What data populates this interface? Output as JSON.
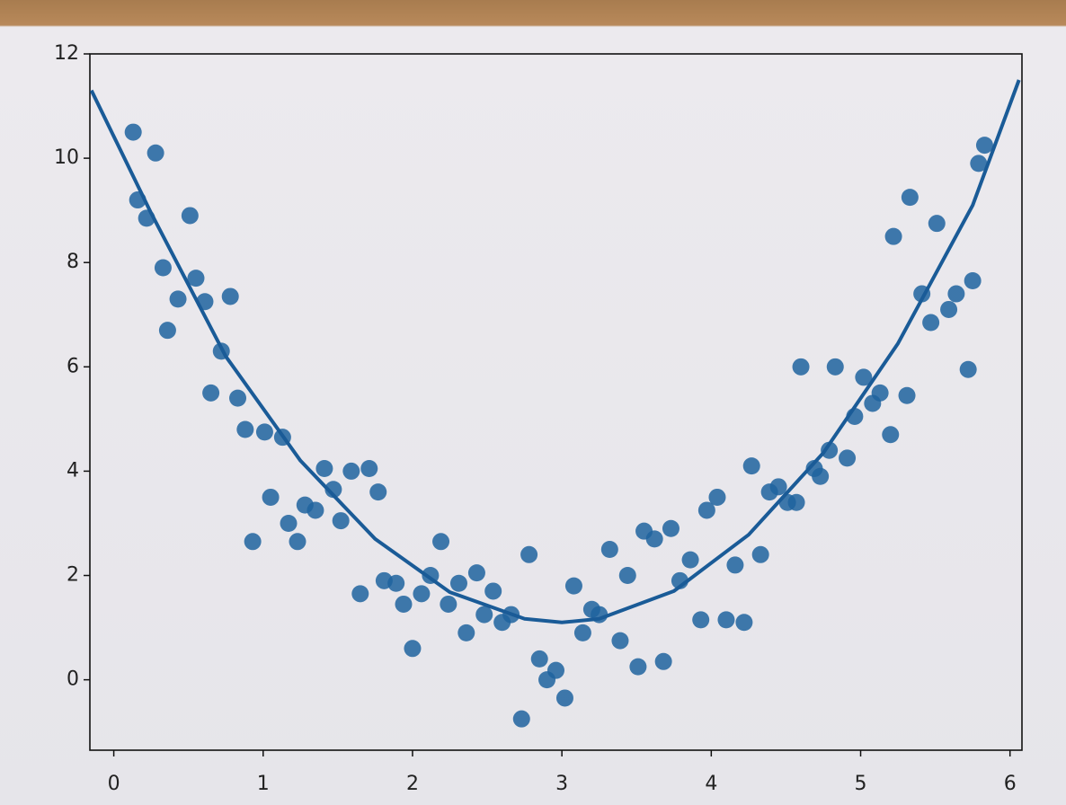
{
  "chart_data": {
    "type": "scatter",
    "xlim": [
      -0.16,
      6.08
    ],
    "ylim": [
      -1.35,
      12
    ],
    "xticks": [
      0,
      1,
      2,
      3,
      4,
      5,
      6
    ],
    "yticks": [
      0,
      2,
      4,
      6,
      8,
      10,
      12
    ],
    "series": [
      {
        "type": "scatter",
        "color": "#1f639f",
        "x": [
          0.13,
          0.16,
          0.22,
          0.28,
          0.33,
          0.36,
          0.43,
          0.51,
          0.55,
          0.61,
          0.72,
          0.65,
          0.78,
          0.83,
          0.88,
          0.93,
          1.01,
          1.05,
          1.13,
          1.17,
          1.23,
          1.28,
          1.35,
          1.41,
          1.47,
          1.52,
          1.59,
          1.65,
          1.71,
          1.77,
          1.81,
          1.89,
          1.94,
          2.0,
          2.06,
          2.12,
          2.19,
          2.24,
          2.31,
          2.36,
          2.43,
          2.48,
          2.54,
          2.6,
          2.66,
          2.73,
          2.78,
          2.85,
          2.9,
          2.96,
          3.02,
          3.08,
          3.14,
          3.2,
          3.25,
          3.32,
          3.39,
          3.44,
          3.51,
          3.55,
          3.62,
          3.68,
          3.73,
          3.79,
          3.86,
          3.93,
          3.97,
          4.04,
          4.1,
          4.16,
          4.22,
          4.27,
          4.33,
          4.39,
          4.45,
          4.51,
          4.57,
          4.6,
          4.69,
          4.73,
          4.79,
          4.83,
          4.91,
          4.96,
          5.02,
          5.08,
          5.13,
          5.2,
          5.22,
          5.31,
          5.33,
          5.41,
          5.47,
          5.51,
          5.59,
          5.64,
          5.72,
          5.75,
          5.79,
          5.83
        ],
        "values": [
          10.5,
          9.2,
          8.85,
          10.1,
          7.9,
          6.7,
          7.3,
          8.9,
          7.7,
          7.25,
          6.3,
          5.5,
          7.35,
          5.4,
          4.8,
          2.65,
          4.75,
          3.5,
          4.65,
          3.0,
          2.65,
          3.35,
          3.25,
          4.05,
          3.65,
          3.05,
          4.0,
          1.65,
          4.05,
          3.6,
          1.9,
          1.85,
          1.45,
          0.6,
          1.65,
          2.0,
          2.65,
          1.45,
          1.85,
          0.9,
          2.05,
          1.25,
          1.7,
          1.1,
          1.25,
          -0.75,
          2.4,
          0.4,
          0.0,
          0.18,
          -0.35,
          1.8,
          0.9,
          1.35,
          1.25,
          2.5,
          0.75,
          2.0,
          0.25,
          2.85,
          2.7,
          0.35,
          2.9,
          1.9,
          2.3,
          1.15,
          3.25,
          3.5,
          1.15,
          2.2,
          1.1,
          4.1,
          2.4,
          3.6,
          3.7,
          3.4,
          3.4,
          6.0,
          4.05,
          3.9,
          4.4,
          6.0,
          4.25,
          5.05,
          5.8,
          5.3,
          5.5,
          4.7,
          8.5,
          5.45,
          9.25,
          7.4,
          6.85,
          8.75,
          7.1,
          7.4,
          5.95,
          7.65,
          9.9,
          10.25
        ]
      },
      {
        "type": "line",
        "color": "#1a5b97",
        "x": [
          -0.15,
          0.25,
          0.75,
          1.25,
          1.75,
          2.25,
          2.75,
          3.0,
          3.25,
          3.75,
          4.25,
          4.75,
          5.25,
          5.75,
          6.06
        ],
        "values": [
          11.3,
          8.95,
          6.2,
          4.2,
          2.7,
          1.68,
          1.17,
          1.1,
          1.17,
          1.7,
          2.78,
          4.35,
          6.45,
          9.1,
          11.5
        ]
      }
    ]
  }
}
